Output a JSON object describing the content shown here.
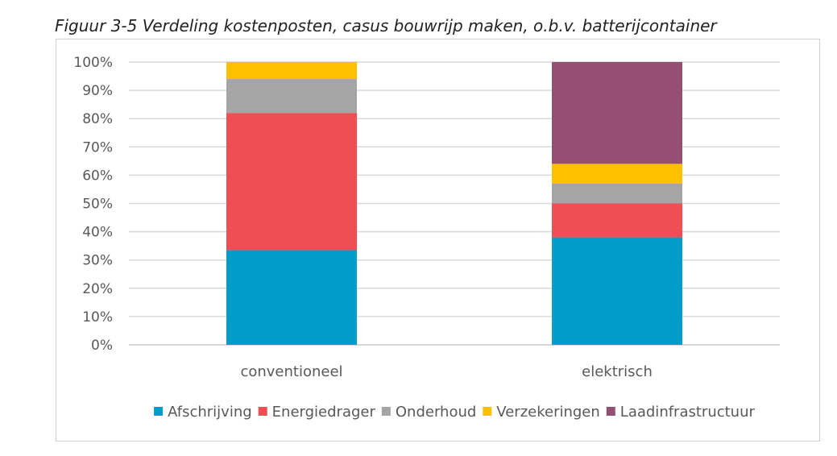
{
  "caption": "Figuur 3-5 Verdeling kostenposten, casus bouwrijp maken, o.b.v. batterijcontainer",
  "chart_data": {
    "type": "bar",
    "stacked": true,
    "categories": [
      "conventioneel",
      "elektrisch"
    ],
    "series": [
      {
        "name": "Afschrijving",
        "color": "#009DC8",
        "values": [
          33.5,
          38
        ]
      },
      {
        "name": "Energiedrager",
        "color": "#EF4E55",
        "values": [
          48.5,
          12
        ]
      },
      {
        "name": "Onderhoud",
        "color": "#A5A5A5",
        "values": [
          12,
          7
        ]
      },
      {
        "name": "Verzekeringen",
        "color": "#FFC000",
        "values": [
          6,
          7
        ]
      },
      {
        "name": "Laadinfrastructuur",
        "color": "#954F72",
        "values": [
          0,
          36
        ]
      }
    ],
    "ylim": [
      0,
      100
    ],
    "yticks": [
      "0%",
      "10%",
      "20%",
      "30%",
      "40%",
      "50%",
      "60%",
      "70%",
      "80%",
      "90%",
      "100%"
    ],
    "grid": true,
    "legend_position": "bottom"
  }
}
